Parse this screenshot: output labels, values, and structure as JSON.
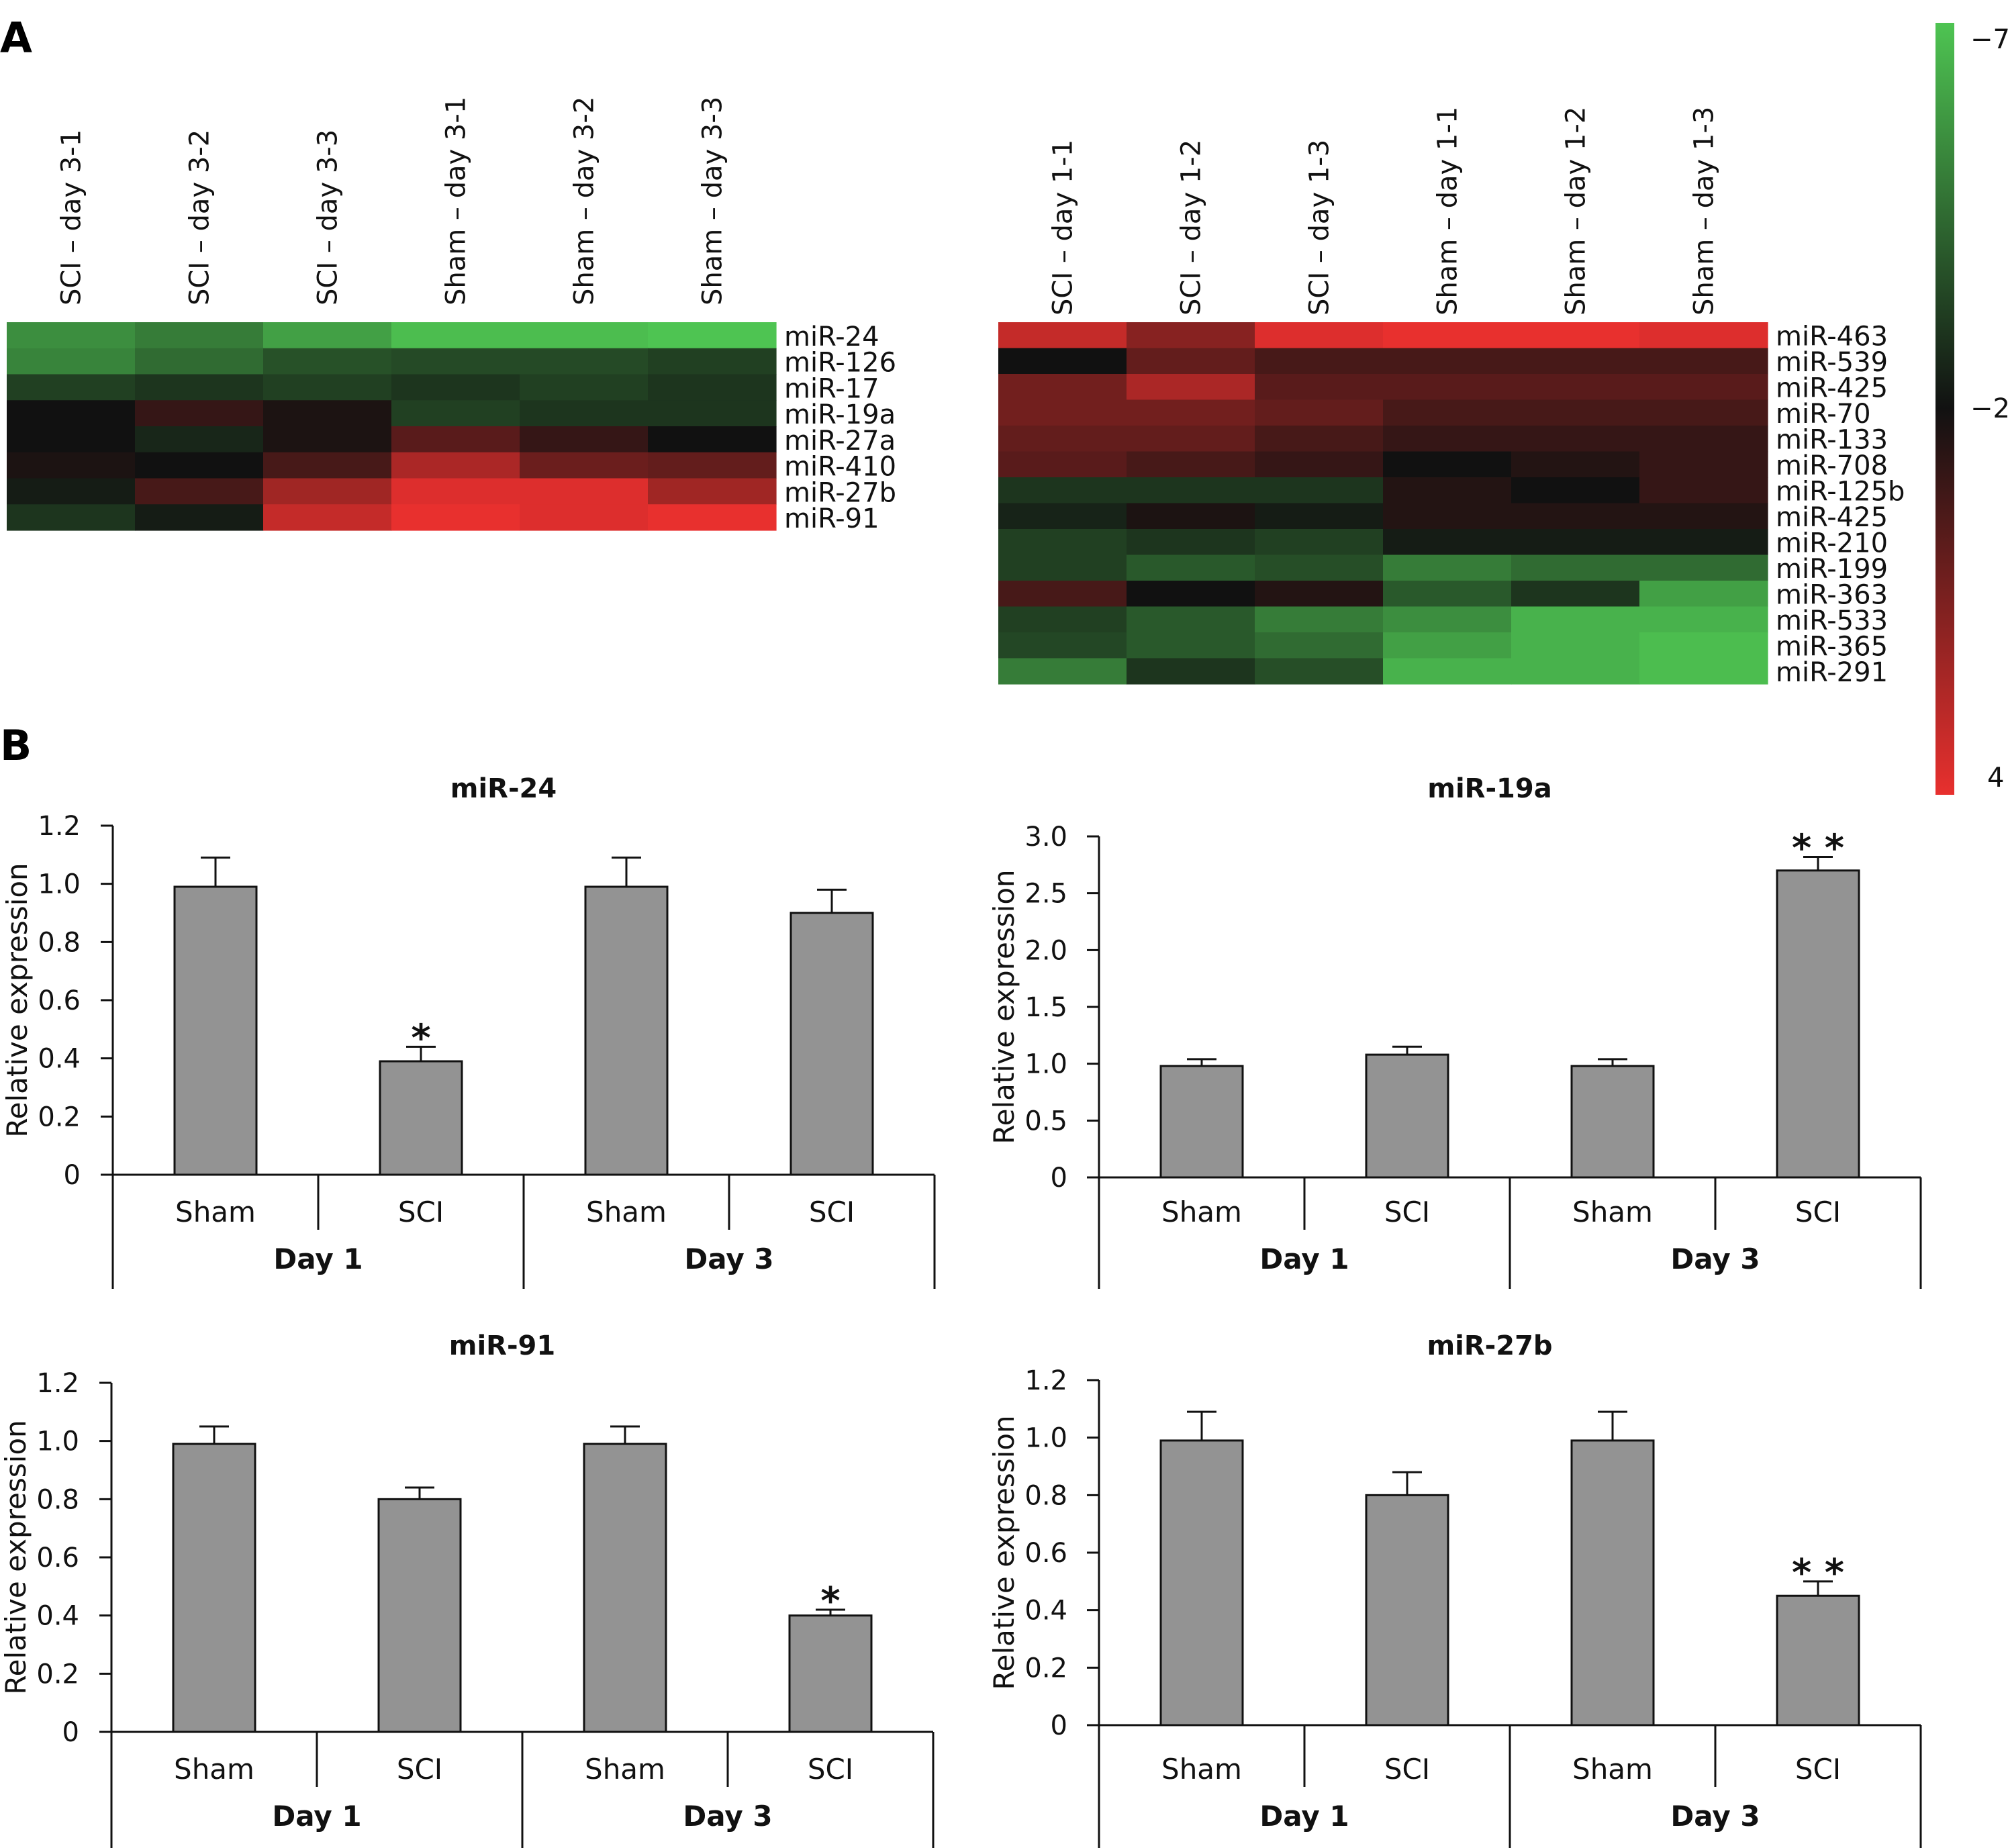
{
  "figure": {
    "panel_a_label": "A",
    "panel_b_label": "B"
  },
  "heatmaps": [
    {
      "columns": [
        "SCI – day 3-1",
        "SCI – day 3-2",
        "SCI – day 3-3",
        "Sham – day 3-1",
        "Sham – day 3-2",
        "Sham – day 3-3"
      ],
      "rows": [
        "miR-24",
        "miR-126",
        "miR-17",
        "miR-19a",
        "miR-27a",
        "miR-410",
        "miR-27b",
        "miR-91"
      ],
      "values": [
        [
          -5.5,
          -5.0,
          -6.0,
          -6.8,
          -6.8,
          -7.0
        ],
        [
          -5.2,
          -4.5,
          -3.8,
          -3.6,
          -3.6,
          -3.3
        ],
        [
          -3.3,
          -3.0,
          -3.3,
          -3.0,
          -3.3,
          -3.0
        ],
        [
          -2.0,
          -1.0,
          -1.7,
          -3.3,
          -3.0,
          -3.0
        ],
        [
          -2.0,
          -2.6,
          -1.7,
          0.0,
          -1.0,
          -2.0
        ],
        [
          -1.7,
          -2.0,
          -0.5,
          2.3,
          0.5,
          0.3
        ],
        [
          -2.3,
          -0.5,
          2.0,
          3.7,
          3.7,
          2.0
        ],
        [
          -3.0,
          -2.3,
          3.0,
          4.0,
          3.7,
          4.0
        ]
      ]
    },
    {
      "columns": [
        "SCI – day 1-1",
        "SCI – day 1-2",
        "SCI – day 1-3",
        "Sham – day 1-1",
        "Sham – day 1-2",
        "Sham – day 1-3"
      ],
      "rows": [
        "miR-463",
        "miR-539",
        "miR-425",
        "miR-70",
        "miR-133",
        "miR-708",
        "miR-125b",
        "miR-425",
        "miR-210",
        "miR-199",
        "miR-363",
        "miR-533",
        "miR-365",
        "miR-291"
      ],
      "values": [
        [
          3.0,
          1.3,
          3.7,
          4.0,
          4.0,
          3.7
        ],
        [
          -2.0,
          0.3,
          -0.5,
          -0.5,
          -0.5,
          -0.5
        ],
        [
          0.7,
          2.3,
          0.0,
          0.0,
          0.0,
          0.0
        ],
        [
          0.7,
          0.7,
          0.3,
          -0.5,
          -0.5,
          -0.5
        ],
        [
          0.3,
          0.3,
          -0.5,
          -1.0,
          -1.0,
          -1.0
        ],
        [
          0.0,
          -0.5,
          -1.0,
          -2.0,
          -1.5,
          -1.0
        ],
        [
          -3.0,
          -3.0,
          -3.0,
          -1.5,
          -2.0,
          -1.0
        ],
        [
          -2.5,
          -1.7,
          -2.3,
          -1.5,
          -1.5,
          -1.5
        ],
        [
          -3.3,
          -3.0,
          -3.3,
          -2.3,
          -2.3,
          -2.3
        ],
        [
          -3.3,
          -4.0,
          -3.7,
          -5.0,
          -4.5,
          -4.5
        ],
        [
          -0.5,
          -2.0,
          -1.5,
          -4.0,
          -3.0,
          -6.0
        ],
        [
          -3.3,
          -4.0,
          -5.0,
          -5.5,
          -6.5,
          -6.5
        ],
        [
          -3.5,
          -4.0,
          -4.5,
          -6.0,
          -6.5,
          -6.8
        ],
        [
          -5.0,
          -3.0,
          -3.7,
          -6.5,
          -6.5,
          -6.8
        ]
      ]
    }
  ],
  "color_scale": {
    "max_label": "−7",
    "mid_label": "−2",
    "min_label": "4",
    "low_value": -7,
    "mid_value": -2,
    "high_value": 4,
    "low_color": "#4ec452",
    "mid_color": "#111111",
    "high_color": "#e8302e"
  },
  "chart_data": [
    {
      "type": "bar",
      "title": "miR-24",
      "ylabel": "Relative expression",
      "ylim": [
        0,
        1.2
      ],
      "yticks": [
        "0",
        "0.2",
        "0.4",
        "0.6",
        "0.8",
        "1.0",
        "1.2"
      ],
      "ytick_values": [
        0,
        0.2,
        0.4,
        0.6,
        0.8,
        1.0,
        1.2
      ],
      "categories": [
        "Sham",
        "SCI",
        "Sham",
        "SCI"
      ],
      "groups": [
        "Day 1",
        "Day 3"
      ],
      "values": [
        0.99,
        0.39,
        0.99,
        0.9
      ],
      "errors": [
        0.1,
        0.05,
        0.1,
        0.08
      ],
      "significance": [
        "",
        "*",
        "",
        ""
      ],
      "bar_color": "#939393"
    },
    {
      "type": "bar",
      "title": "miR-19a",
      "ylabel": "Relative expression",
      "ylim": [
        0,
        3.0
      ],
      "yticks": [
        "0",
        "0.5",
        "1.0",
        "1.5",
        "2.0",
        "2.5",
        "3.0"
      ],
      "ytick_values": [
        0,
        0.5,
        1.0,
        1.5,
        2.0,
        2.5,
        3.0
      ],
      "categories": [
        "Sham",
        "SCI",
        "Sham",
        "SCI"
      ],
      "groups": [
        "Day 1",
        "Day 3"
      ],
      "values": [
        0.98,
        1.08,
        0.98,
        2.7
      ],
      "errors": [
        0.06,
        0.07,
        0.06,
        0.12
      ],
      "significance": [
        "",
        "",
        "",
        "* *"
      ],
      "bar_color": "#939393"
    },
    {
      "type": "bar",
      "title": "miR-91",
      "ylabel": "Relative expression",
      "ylim": [
        0,
        1.2
      ],
      "yticks": [
        "0",
        "0.2",
        "0.4",
        "0.6",
        "0.8",
        "1.0",
        "1.2"
      ],
      "ytick_values": [
        0,
        0.2,
        0.4,
        0.6,
        0.8,
        1.0,
        1.2
      ],
      "categories": [
        "Sham",
        "SCI",
        "Sham",
        "SCI"
      ],
      "groups": [
        "Day 1",
        "Day 3"
      ],
      "values": [
        0.99,
        0.8,
        0.99,
        0.4
      ],
      "errors": [
        0.06,
        0.04,
        0.06,
        0.02
      ],
      "significance": [
        "",
        "",
        "",
        "*"
      ],
      "bar_color": "#939393"
    },
    {
      "type": "bar",
      "title": "miR-27b",
      "ylabel": "Relative expression",
      "ylim": [
        0,
        1.2
      ],
      "yticks": [
        "0",
        "0.2",
        "0.4",
        "0.6",
        "0.8",
        "1.0",
        "1.2"
      ],
      "ytick_values": [
        0,
        0.2,
        0.4,
        0.6,
        0.8,
        1.0,
        1.2
      ],
      "categories": [
        "Sham",
        "SCI",
        "Sham",
        "SCI"
      ],
      "groups": [
        "Day 1",
        "Day 3"
      ],
      "values": [
        0.99,
        0.8,
        0.99,
        0.45
      ],
      "errors": [
        0.1,
        0.08,
        0.1,
        0.05
      ],
      "significance": [
        "",
        "",
        "",
        "* *"
      ],
      "bar_color": "#939393"
    }
  ]
}
